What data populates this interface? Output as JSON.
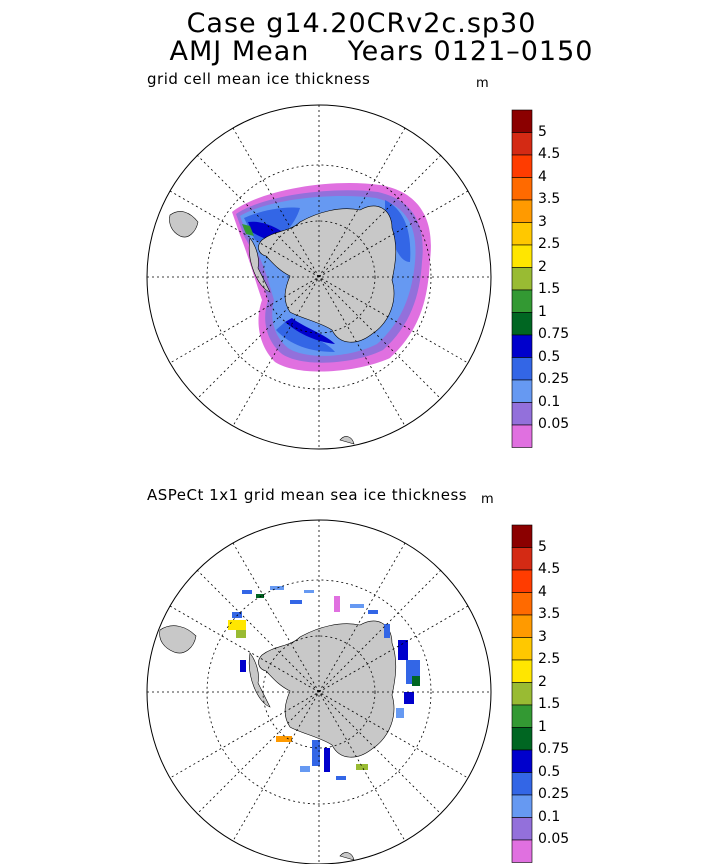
{
  "title": {
    "line1": "Case g14.20CRv2c.sp30",
    "line2": "AMJ Mean    Years 0121–0150"
  },
  "panels": [
    {
      "label": "grid cell mean ice thickness",
      "unit": "m"
    },
    {
      "label": "ASPeCt 1x1 grid mean sea ice thickness",
      "unit": "m"
    }
  ],
  "colorbar": {
    "labels": [
      "5",
      "4.5",
      "4",
      "3.5",
      "3",
      "2.5",
      "2",
      "1.5",
      "1",
      "0.75",
      "0.5",
      "0.25",
      "0.1",
      "0.05"
    ],
    "colors": [
      "#8b0000",
      "#d42a14",
      "#ff3c00",
      "#ff6a00",
      "#ff9a00",
      "#ffc800",
      "#ffe600",
      "#99bb33",
      "#339933",
      "#006622",
      "#0000cc",
      "#3366e6",
      "#6699f2",
      "#9370db",
      "#e070e0"
    ]
  },
  "colors": {
    "land": "#c8c8c8",
    "ocean": "#ffffff",
    "grid": "#000000"
  }
}
